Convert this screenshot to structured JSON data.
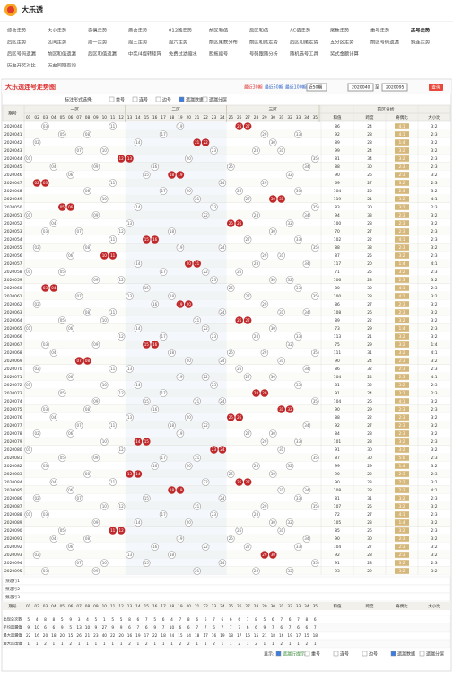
{
  "header": {
    "logo": "大乐透"
  },
  "nav": [
    [
      "综合走势",
      "大小走势",
      "奇偶走势",
      "质合走势",
      "012路走势",
      "前区和值",
      "后区和值",
      "AC值走势",
      "尾数走势",
      "重号走势",
      "连号走势"
    ],
    [
      "后区走势",
      "区间走势",
      "周一走势",
      "周三走势",
      "周六走势",
      "前区尾数分布",
      "前区和尾走势",
      "后区和尾走势",
      "五分区走势",
      "前区号码遗漏",
      "斜连走势"
    ],
    [
      "后区号码遗漏",
      "前区和值遗漏",
      "后区和值遗漏",
      "中奖/4旋转矩阵",
      "免费过滤缩水",
      "胆拖缩号",
      "号码跟随分析",
      "随机选号工具",
      "奖式金额计算"
    ],
    [
      "历史开奖对比",
      "历史同期查询"
    ]
  ],
  "active_nav": "连号走势",
  "panel": {
    "title": "大乐透连号走势图",
    "periods": [
      "最近30期",
      "最近50期",
      "最近100期"
    ],
    "select": "近50期",
    "range_from": "2020040",
    "range_to_label": "至",
    "range_to": "2020095",
    "query": "查询"
  },
  "filters": {
    "label": "标注形式选择:",
    "options": [
      "重号",
      "连号",
      "边号",
      "遗漏数据",
      "遗漏分层"
    ],
    "checked": "遗漏数据"
  },
  "table": {
    "issue_header": "期号",
    "zones": [
      "一区",
      "二区",
      "三区"
    ],
    "stats_header": "前区分析",
    "columns": [
      "01",
      "02",
      "03",
      "04",
      "05",
      "06",
      "07",
      "08",
      "09",
      "10",
      "11",
      "12",
      "13",
      "14",
      "15",
      "16",
      "17",
      "18",
      "19",
      "20",
      "21",
      "22",
      "23",
      "24",
      "25",
      "26",
      "27",
      "28",
      "29",
      "30",
      "31",
      "32",
      "33",
      "34",
      "35"
    ],
    "stat_columns": [
      "和值",
      "跨度",
      "奇偶比",
      "大小比"
    ],
    "rows": [
      {
        "issue": "2020040",
        "balls": [
          3,
          11,
          19,
          26,
          27
        ],
        "sum": 86,
        "span": 24,
        "odd_even": "4:1",
        "big_small": "3:2"
      },
      {
        "issue": "2020041",
        "balls": [
          5,
          8,
          17,
          29,
          33
        ],
        "sum": 92,
        "span": 28,
        "odd_even": "4:1",
        "big_small": "2:3"
      },
      {
        "issue": "2020042",
        "balls": [
          2,
          14,
          21,
          22,
          30
        ],
        "sum": 89,
        "span": 28,
        "odd_even": "1:4",
        "big_small": "3:2"
      },
      {
        "issue": "2020043",
        "balls": [
          7,
          10,
          23,
          28,
          31
        ],
        "sum": 99,
        "span": 24,
        "odd_even": "3:2",
        "big_small": "3:2"
      },
      {
        "issue": "2020044",
        "balls": [
          1,
          12,
          13,
          20,
          35
        ],
        "sum": 81,
        "span": 34,
        "odd_even": "3:2",
        "big_small": "2:3"
      },
      {
        "issue": "2020045",
        "balls": [
          4,
          9,
          16,
          25,
          34
        ],
        "sum": 88,
        "span": 30,
        "odd_even": "2:3",
        "big_small": "2:3"
      },
      {
        "issue": "2020046",
        "balls": [
          6,
          15,
          18,
          19,
          32
        ],
        "sum": 90,
        "span": 26,
        "odd_even": "2:3",
        "big_small": "3:2"
      },
      {
        "issue": "2020047",
        "balls": [
          2,
          3,
          11,
          24,
          29
        ],
        "sum": 69,
        "span": 27,
        "odd_even": "3:2",
        "big_small": "2:3"
      },
      {
        "issue": "2020048",
        "balls": [
          8,
          17,
          20,
          26,
          33
        ],
        "sum": 104,
        "span": 25,
        "odd_even": "2:3",
        "big_small": "3:2"
      },
      {
        "issue": "2020049",
        "balls": [
          10,
          21,
          27,
          30,
          31
        ],
        "sum": 119,
        "span": 21,
        "odd_even": "3:2",
        "big_small": "4:1"
      },
      {
        "issue": "2020050",
        "balls": [
          5,
          6,
          14,
          23,
          35
        ],
        "sum": 83,
        "span": 30,
        "odd_even": "3:2",
        "big_small": "2:3"
      },
      {
        "issue": "2020051",
        "balls": [
          1,
          9,
          22,
          28,
          34
        ],
        "sum": 94,
        "span": 33,
        "odd_even": "2:3",
        "big_small": "3:2"
      },
      {
        "issue": "2020052",
        "balls": [
          4,
          13,
          25,
          26,
          32
        ],
        "sum": 100,
        "span": 28,
        "odd_even": "2:3",
        "big_small": "3:2"
      },
      {
        "issue": "2020053",
        "balls": [
          3,
          7,
          12,
          18,
          30
        ],
        "sum": 70,
        "span": 27,
        "odd_even": "2:3",
        "big_small": "2:3"
      },
      {
        "issue": "2020054",
        "balls": [
          11,
          15,
          16,
          27,
          33
        ],
        "sum": 102,
        "span": 22,
        "odd_even": "4:1",
        "big_small": "2:3"
      },
      {
        "issue": "2020055",
        "balls": [
          2,
          8,
          19,
          24,
          35
        ],
        "sum": 88,
        "span": 33,
        "odd_even": "2:3",
        "big_small": "3:2"
      },
      {
        "issue": "2020056",
        "balls": [
          6,
          10,
          11,
          29,
          31
        ],
        "sum": 87,
        "span": 25,
        "odd_even": "3:2",
        "big_small": "2:3"
      },
      {
        "issue": "2020057",
        "balls": [
          14,
          20,
          21,
          28,
          34
        ],
        "sum": 117,
        "span": 20,
        "odd_even": "1:4",
        "big_small": "4:1"
      },
      {
        "issue": "2020058",
        "balls": [
          1,
          5,
          17,
          22,
          26
        ],
        "sum": 71,
        "span": 25,
        "odd_even": "3:2",
        "big_small": "2:3"
      },
      {
        "issue": "2020059",
        "balls": [
          9,
          12,
          23,
          30,
          32
        ],
        "sum": 106,
        "span": 23,
        "odd_even": "2:3",
        "big_small": "3:2"
      },
      {
        "issue": "2020060",
        "balls": [
          3,
          4,
          15,
          25,
          33
        ],
        "sum": 80,
        "span": 30,
        "odd_even": "4:1",
        "big_small": "2:3"
      },
      {
        "issue": "2020061",
        "balls": [
          7,
          13,
          18,
          27,
          35
        ],
        "sum": 100,
        "span": 28,
        "odd_even": "4:1",
        "big_small": "3:2"
      },
      {
        "issue": "2020062",
        "balls": [
          2,
          16,
          19,
          20,
          29
        ],
        "sum": 86,
        "span": 27,
        "odd_even": "2:3",
        "big_small": "3:2"
      },
      {
        "issue": "2020063",
        "balls": [
          8,
          11,
          24,
          31,
          34
        ],
        "sum": 108,
        "span": 26,
        "odd_even": "2:3",
        "big_small": "3:2"
      },
      {
        "issue": "2020064",
        "balls": [
          5,
          10,
          21,
          26,
          27
        ],
        "sum": 89,
        "span": 22,
        "odd_even": "3:2",
        "big_small": "3:2"
      },
      {
        "issue": "2020065",
        "balls": [
          1,
          6,
          14,
          22,
          30
        ],
        "sum": 73,
        "span": 29,
        "odd_even": "1:4",
        "big_small": "2:3"
      },
      {
        "issue": "2020066",
        "balls": [
          12,
          17,
          23,
          28,
          33
        ],
        "sum": 113,
        "span": 21,
        "odd_even": "3:2",
        "big_small": "3:2"
      },
      {
        "issue": "2020067",
        "balls": [
          3,
          9,
          15,
          16,
          32
        ],
        "sum": 75,
        "span": 29,
        "odd_even": "3:2",
        "big_small": "1:4"
      },
      {
        "issue": "2020068",
        "balls": [
          4,
          18,
          25,
          29,
          35
        ],
        "sum": 111,
        "span": 31,
        "odd_even": "3:2",
        "big_small": "4:1"
      },
      {
        "issue": "2020069",
        "balls": [
          7,
          8,
          20,
          24,
          31
        ],
        "sum": 90,
        "span": 24,
        "odd_even": "2:3",
        "big_small": "3:2"
      },
      {
        "issue": "2020070",
        "balls": [
          2,
          11,
          13,
          26,
          34
        ],
        "sum": 86,
        "span": 32,
        "odd_even": "2:3",
        "big_small": "2:3"
      },
      {
        "issue": "2020071",
        "balls": [
          6,
          19,
          22,
          27,
          30
        ],
        "sum": 104,
        "span": 24,
        "odd_even": "2:3",
        "big_small": "4:1"
      },
      {
        "issue": "2020072",
        "balls": [
          1,
          10,
          14,
          23,
          33
        ],
        "sum": 81,
        "span": 32,
        "odd_even": "3:2",
        "big_small": "2:3"
      },
      {
        "issue": "2020073",
        "balls": [
          5,
          12,
          17,
          28,
          29
        ],
        "sum": 91,
        "span": 24,
        "odd_even": "3:2",
        "big_small": "2:3"
      },
      {
        "issue": "2020074",
        "balls": [
          9,
          15,
          21,
          24,
          35
        ],
        "sum": 104,
        "span": 26,
        "odd_even": "4:1",
        "big_small": "3:2"
      },
      {
        "issue": "2020075",
        "balls": [
          3,
          8,
          16,
          31,
          32
        ],
        "sum": 90,
        "span": 29,
        "odd_even": "2:3",
        "big_small": "2:3"
      },
      {
        "issue": "2020076",
        "balls": [
          4,
          13,
          20,
          25,
          26
        ],
        "sum": 88,
        "span": 22,
        "odd_even": "2:3",
        "big_small": "3:2"
      },
      {
        "issue": "2020077",
        "balls": [
          7,
          11,
          18,
          22,
          34
        ],
        "sum": 92,
        "span": 27,
        "odd_even": "2:3",
        "big_small": "3:2"
      },
      {
        "issue": "2020078",
        "balls": [
          2,
          6,
          19,
          27,
          30
        ],
        "sum": 84,
        "span": 28,
        "odd_even": "2:3",
        "big_small": "3:2"
      },
      {
        "issue": "2020079",
        "balls": [
          10,
          14,
          15,
          29,
          33
        ],
        "sum": 101,
        "span": 23,
        "odd_even": "3:2",
        "big_small": "2:3"
      },
      {
        "issue": "2020080",
        "balls": [
          1,
          12,
          23,
          24,
          31
        ],
        "sum": 91,
        "span": 30,
        "odd_even": "3:2",
        "big_small": "3:2"
      },
      {
        "issue": "2020081",
        "balls": [
          5,
          9,
          17,
          21,
          35
        ],
        "sum": 87,
        "span": 30,
        "odd_even": "5:0",
        "big_small": "2:3"
      },
      {
        "issue": "2020082",
        "balls": [
          3,
          16,
          20,
          28,
          32
        ],
        "sum": 99,
        "span": 29,
        "odd_even": "1:4",
        "big_small": "3:2"
      },
      {
        "issue": "2020083",
        "balls": [
          8,
          13,
          14,
          25,
          30
        ],
        "sum": 90,
        "span": 22,
        "odd_even": "2:3",
        "big_small": "2:3"
      },
      {
        "issue": "2020084",
        "balls": [
          4,
          11,
          22,
          26,
          27
        ],
        "sum": 90,
        "span": 23,
        "odd_even": "2:3",
        "big_small": "3:2"
      },
      {
        "issue": "2020085",
        "balls": [
          6,
          18,
          19,
          31,
          34
        ],
        "sum": 108,
        "span": 28,
        "odd_even": "2:3",
        "big_small": "4:1"
      },
      {
        "issue": "2020086",
        "balls": [
          2,
          7,
          15,
          24,
          33
        ],
        "sum": 81,
        "span": 31,
        "odd_even": "3:2",
        "big_small": "2:3"
      },
      {
        "issue": "2020087",
        "balls": [
          10,
          12,
          21,
          29,
          35
        ],
        "sum": 107,
        "span": 25,
        "odd_even": "3:2",
        "big_small": "3:2"
      },
      {
        "issue": "2020088",
        "balls": [
          1,
          3,
          17,
          23,
          28
        ],
        "sum": 72,
        "span": 27,
        "odd_even": "4:1",
        "big_small": "2:3"
      },
      {
        "issue": "2020089",
        "balls": [
          9,
          14,
          20,
          30,
          32
        ],
        "sum": 105,
        "span": 23,
        "odd_even": "1:4",
        "big_small": "3:2"
      },
      {
        "issue": "2020090",
        "balls": [
          5,
          11,
          12,
          26,
          31
        ],
        "sum": 85,
        "span": 26,
        "odd_even": "3:2",
        "big_small": "2:3"
      },
      {
        "issue": "2020091",
        "balls": [
          4,
          8,
          19,
          25,
          34
        ],
        "sum": 90,
        "span": 30,
        "odd_even": "2:3",
        "big_small": "3:2"
      },
      {
        "issue": "2020092",
        "balls": [
          6,
          16,
          22,
          27,
          33
        ],
        "sum": 104,
        "span": 27,
        "odd_even": "2:3",
        "big_small": "3:2"
      },
      {
        "issue": "2020093",
        "balls": [
          2,
          13,
          18,
          29,
          30
        ],
        "sum": 92,
        "span": 28,
        "odd_even": "2:3",
        "big_small": "3:2"
      },
      {
        "issue": "2020094",
        "balls": [
          7,
          10,
          15,
          24,
          35
        ],
        "sum": 91,
        "span": 28,
        "odd_even": "3:2",
        "big_small": "2:3"
      },
      {
        "issue": "2020095",
        "balls": [
          3,
          9,
          21,
          28,
          32
        ],
        "sum": 93,
        "span": 29,
        "odd_even": "3:2",
        "big_small": "3:2"
      }
    ],
    "preselect": [
      "预选行1",
      "预选行2",
      "预选行3"
    ],
    "summary": [
      {
        "label": "出现总次数",
        "values": [
          5,
          4,
          8,
          8,
          5,
          9,
          3,
          4,
          5,
          1,
          5,
          5,
          8,
          6,
          7,
          5,
          6,
          4,
          7,
          8,
          6,
          6,
          7,
          6,
          6,
          6,
          7,
          8,
          5,
          6,
          7,
          6,
          7,
          8,
          6
        ]
      },
      {
        "label": "平均遗漏值",
        "values": [
          9,
          10,
          6,
          6,
          9,
          5,
          13,
          10,
          9,
          27,
          9,
          9,
          6,
          7,
          6,
          9,
          7,
          10,
          6,
          6,
          7,
          7,
          6,
          7,
          7,
          7,
          6,
          6,
          9,
          7,
          6,
          7,
          6,
          6,
          7
        ]
      },
      {
        "label": "最大遗漏值",
        "values": [
          22,
          16,
          20,
          18,
          20,
          15,
          26,
          21,
          23,
          40,
          22,
          20,
          16,
          19,
          17,
          22,
          18,
          24,
          15,
          14,
          18,
          17,
          16,
          19,
          18,
          17,
          16,
          15,
          21,
          18,
          16,
          19,
          17,
          15,
          18
        ]
      },
      {
        "label": "最大连出值",
        "values": [
          1,
          1,
          2,
          1,
          1,
          2,
          1,
          1,
          1,
          1,
          1,
          1,
          2,
          1,
          2,
          1,
          1,
          1,
          2,
          2,
          1,
          1,
          2,
          1,
          1,
          2,
          1,
          2,
          1,
          1,
          2,
          1,
          1,
          2,
          1
        ]
      }
    ]
  },
  "footer": {
    "label": "显示:",
    "options": [
      "遗漏行提示",
      "重号",
      "连号",
      "边号",
      "遗漏数据",
      "遗漏分层"
    ]
  }
}
